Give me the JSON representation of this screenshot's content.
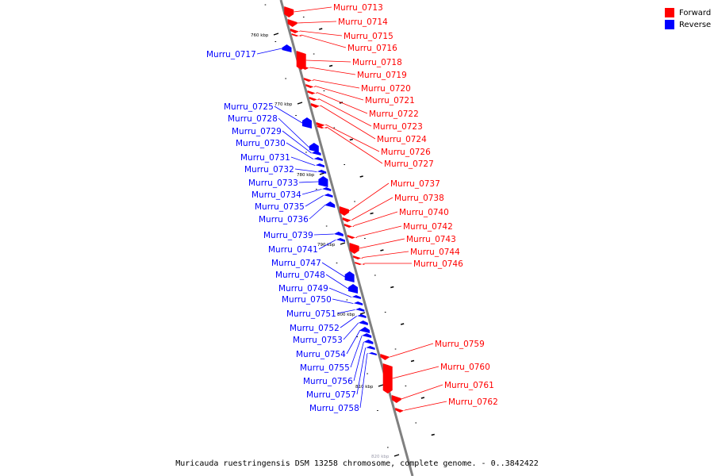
{
  "caption": "Muricauda ruestringensis DSM 13258 chromosome, complete genome. - 0..3842422",
  "legend": [
    {
      "label": "Forward",
      "color": "#ff0000"
    },
    {
      "label": "Reverse",
      "color": "#0000ff"
    }
  ],
  "colors": {
    "forward": "#ff0000",
    "reverse": "#0000ff",
    "backbone": "#808080"
  },
  "scale_labels": [
    {
      "text": "760 kbp",
      "kbp": 760
    },
    {
      "text": "770 kbp",
      "kbp": 770
    },
    {
      "text": "780 kbp",
      "kbp": 780
    },
    {
      "text": "790 kbp",
      "kbp": 790
    },
    {
      "text": "800 kbp",
      "kbp": 800
    },
    {
      "text": "810 kbp",
      "kbp": 810
    },
    {
      "text": "820 kbp",
      "kbp": 820
    }
  ],
  "genes": [
    {
      "label": "Murru_0713",
      "strand": "forward"
    },
    {
      "label": "Murru_0714",
      "strand": "forward"
    },
    {
      "label": "Murru_0715",
      "strand": "forward"
    },
    {
      "label": "Murru_0716",
      "strand": "forward"
    },
    {
      "label": "Murru_0717",
      "strand": "reverse"
    },
    {
      "label": "Murru_0718",
      "strand": "forward"
    },
    {
      "label": "Murru_0719",
      "strand": "forward"
    },
    {
      "label": "Murru_0720",
      "strand": "forward"
    },
    {
      "label": "Murru_0721",
      "strand": "forward"
    },
    {
      "label": "Murru_0722",
      "strand": "forward"
    },
    {
      "label": "Murru_0723",
      "strand": "forward"
    },
    {
      "label": "Murru_0724",
      "strand": "forward"
    },
    {
      "label": "Murru_0725",
      "strand": "reverse"
    },
    {
      "label": "Murru_0726",
      "strand": "forward"
    },
    {
      "label": "Murru_0727",
      "strand": "forward"
    },
    {
      "label": "Murru_0728",
      "strand": "reverse"
    },
    {
      "label": "Murru_0729",
      "strand": "reverse"
    },
    {
      "label": "Murru_0730",
      "strand": "reverse"
    },
    {
      "label": "Murru_0731",
      "strand": "reverse"
    },
    {
      "label": "Murru_0732",
      "strand": "reverse"
    },
    {
      "label": "Murru_0733",
      "strand": "reverse"
    },
    {
      "label": "Murru_0734",
      "strand": "reverse"
    },
    {
      "label": "Murru_0735",
      "strand": "reverse"
    },
    {
      "label": "Murru_0736",
      "strand": "reverse"
    },
    {
      "label": "Murru_0737",
      "strand": "forward"
    },
    {
      "label": "Murru_0738",
      "strand": "forward"
    },
    {
      "label": "Murru_0739",
      "strand": "reverse"
    },
    {
      "label": "Murru_0740",
      "strand": "forward"
    },
    {
      "label": "Murru_0741",
      "strand": "reverse"
    },
    {
      "label": "Murru_0742",
      "strand": "forward"
    },
    {
      "label": "Murru_0743",
      "strand": "forward"
    },
    {
      "label": "Murru_0744",
      "strand": "forward"
    },
    {
      "label": "Murru_0746",
      "strand": "forward"
    },
    {
      "label": "Murru_0747",
      "strand": "reverse"
    },
    {
      "label": "Murru_0748",
      "strand": "reverse"
    },
    {
      "label": "Murru_0749",
      "strand": "reverse"
    },
    {
      "label": "Murru_0750",
      "strand": "reverse"
    },
    {
      "label": "Murru_0751",
      "strand": "reverse"
    },
    {
      "label": "Murru_0752",
      "strand": "reverse"
    },
    {
      "label": "Murru_0753",
      "strand": "reverse"
    },
    {
      "label": "Murru_0754",
      "strand": "reverse"
    },
    {
      "label": "Murru_0755",
      "strand": "reverse"
    },
    {
      "label": "Murru_0756",
      "strand": "reverse"
    },
    {
      "label": "Murru_0757",
      "strand": "reverse"
    },
    {
      "label": "Murru_0758",
      "strand": "reverse"
    },
    {
      "label": "Murru_0759",
      "strand": "forward"
    },
    {
      "label": "Murru_0760",
      "strand": "forward"
    },
    {
      "label": "Murru_0761",
      "strand": "forward"
    },
    {
      "label": "Murru_0762",
      "strand": "forward"
    }
  ]
}
